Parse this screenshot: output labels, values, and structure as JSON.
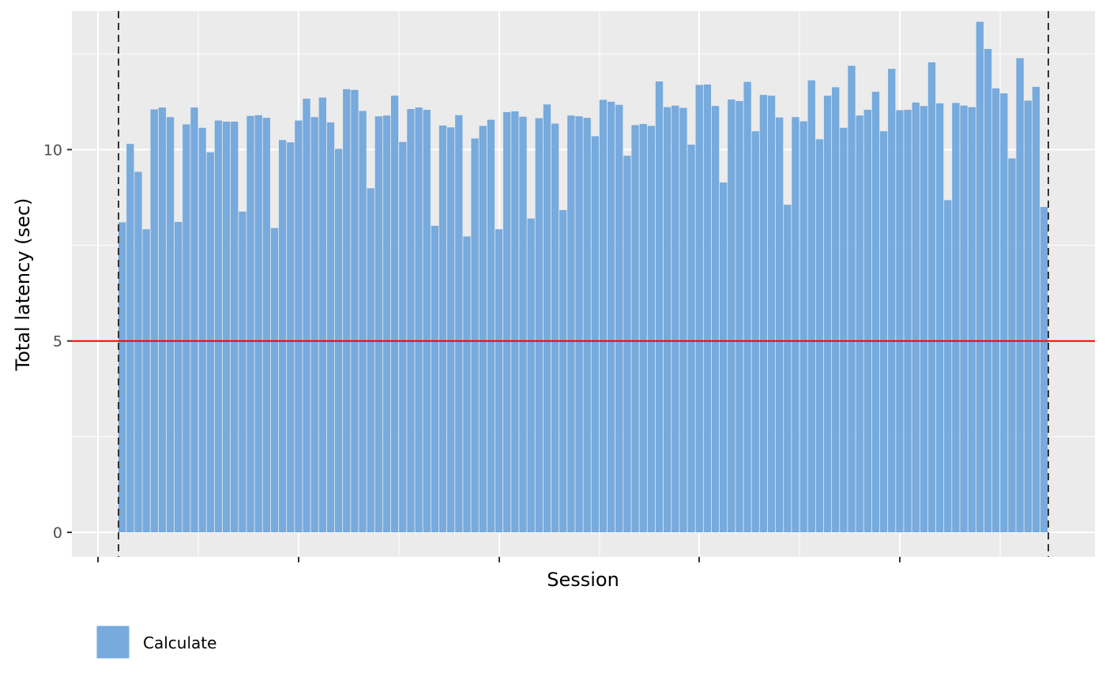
{
  "chart_data": {
    "type": "bar",
    "xlabel": "Session",
    "ylabel": "Total latency (sec)",
    "ylim": [
      -0.64,
      13.62
    ],
    "yticks": [
      0,
      5,
      10
    ],
    "x_ticks_labeled": false,
    "grid": true,
    "threshold": {
      "value": 5,
      "color": "#ff0000"
    },
    "window_lines": {
      "style": "dashed",
      "color": "#333333"
    },
    "legend": {
      "position": "bottom-left",
      "entries": [
        {
          "label": "Calculate",
          "color": "#77aadd"
        }
      ]
    },
    "series": [
      {
        "name": "Calculate",
        "color": "#77aadd",
        "values": [
          8.1,
          10.15,
          9.42,
          7.92,
          11.05,
          11.1,
          10.85,
          8.11,
          10.66,
          11.1,
          10.57,
          9.93,
          10.76,
          10.73,
          10.73,
          8.38,
          10.88,
          10.9,
          10.83,
          7.95,
          10.25,
          10.19,
          10.76,
          11.33,
          10.85,
          11.36,
          10.71,
          10.02,
          11.58,
          11.56,
          11.01,
          8.99,
          10.87,
          10.89,
          11.41,
          10.2,
          11.06,
          11.1,
          11.04,
          8.01,
          10.63,
          10.58,
          10.9,
          7.73,
          10.29,
          10.62,
          10.78,
          7.92,
          10.98,
          11.0,
          10.86,
          8.2,
          10.82,
          11.18,
          10.68,
          8.42,
          10.89,
          10.87,
          10.83,
          10.35,
          11.3,
          11.25,
          11.17,
          9.84,
          10.64,
          10.67,
          10.62,
          11.78,
          11.11,
          11.15,
          11.09,
          10.13,
          11.69,
          11.7,
          11.14,
          9.14,
          11.31,
          11.27,
          11.77,
          10.48,
          11.43,
          11.41,
          10.84,
          8.56,
          10.85,
          10.74,
          11.81,
          10.27,
          11.41,
          11.63,
          10.57,
          12.19,
          10.89,
          11.04,
          11.51,
          10.48,
          12.11,
          11.03,
          11.04,
          11.23,
          11.14,
          12.28,
          11.21,
          8.68,
          11.22,
          11.15,
          11.11,
          13.34,
          12.63,
          11.6,
          11.47,
          9.77,
          12.39,
          11.28,
          11.64,
          8.5
        ]
      }
    ]
  }
}
